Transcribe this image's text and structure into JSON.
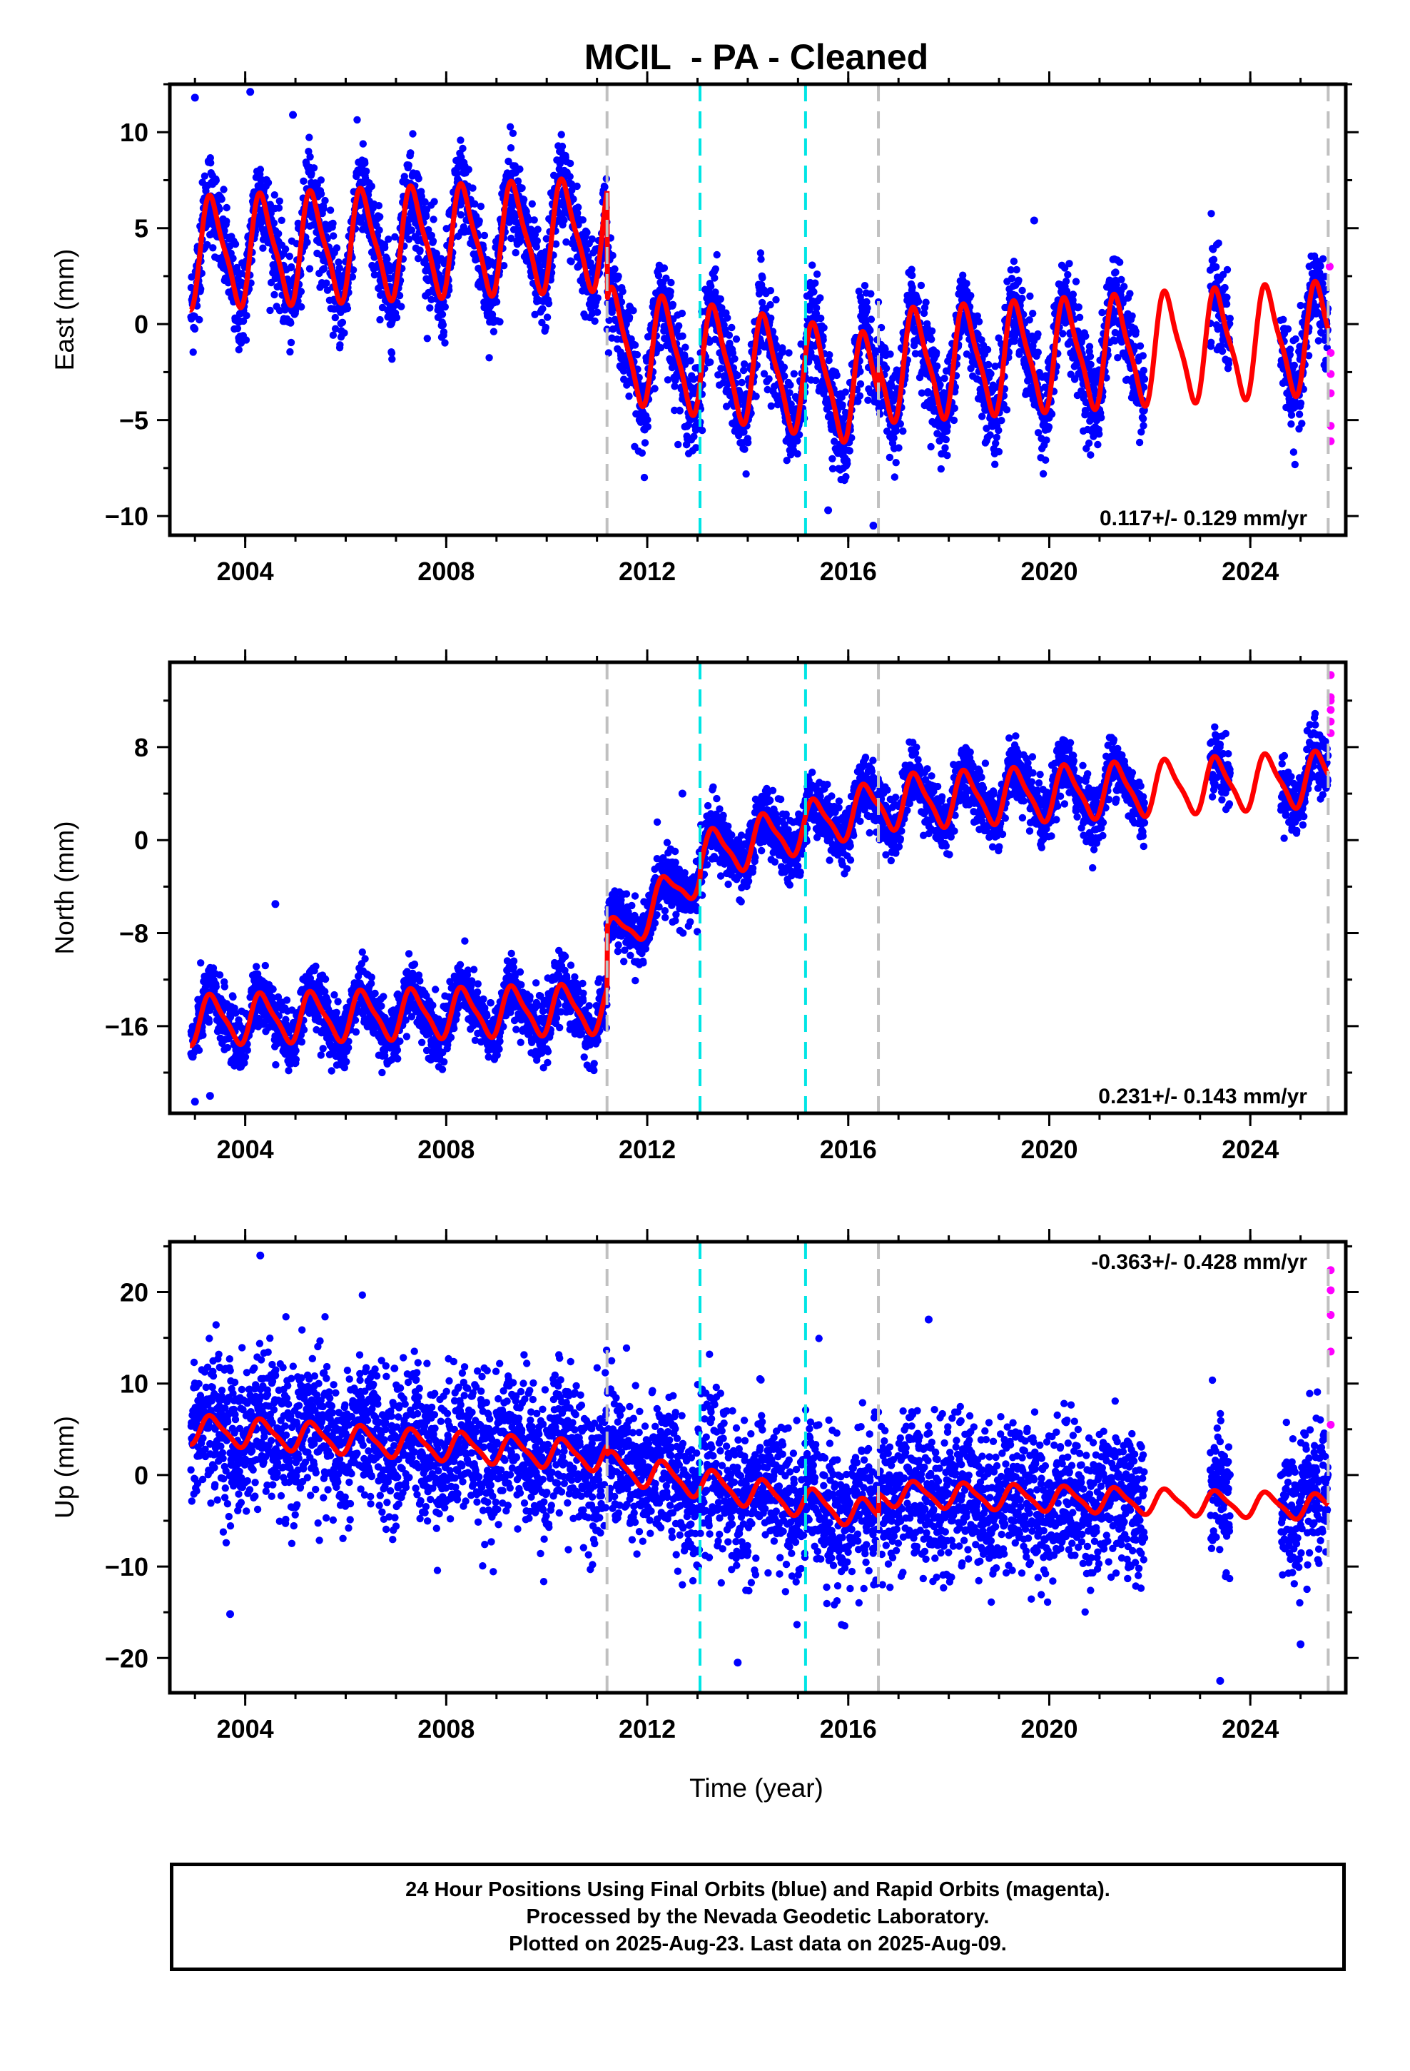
{
  "title": "MCIL  - PA - Cleaned",
  "xlabel": "Time (year)",
  "footer": {
    "line1": "24 Hour Positions Using Final Orbits (blue) and Rapid Orbits (magenta).",
    "line2": "Processed by the Nevada Geodetic Laboratory.",
    "line3": "Plotted on 2025-Aug-23. Last data on 2025-Aug-09."
  },
  "colors": {
    "final_orbits": "#0000ff",
    "rapid_orbits": "#ff00ff",
    "model_fit": "#ff0000",
    "equipment_change_line": "#c0c0c0",
    "earthquake_line": "#00e5e5"
  },
  "chart_data": [
    {
      "type": "scatter",
      "ylabel": "East (mm)",
      "xlim": [
        2002.5,
        2025.9
      ],
      "ylim": [
        -11,
        12.5
      ],
      "xticks": [
        2004,
        2008,
        2012,
        2016,
        2020,
        2024
      ],
      "yticks": [
        -10,
        -5,
        0,
        5,
        10
      ],
      "rate_label": "0.117+/- 0.129 mm/yr",
      "rate_position": "bottom-right",
      "grey_dashed_lines": [
        2011.2,
        2016.6,
        2025.55
      ],
      "cyan_dashed_lines": [
        2013.05,
        2015.15
      ],
      "model_segments": [
        {
          "start": 2002.9,
          "end": 2011.2,
          "mean_start": 3.7,
          "mean_end": 4.7,
          "amplitude": 2.7
        },
        {
          "start": 2011.2,
          "end": 2016.6,
          "mean_start": -1.0,
          "mean_end": -3.5,
          "amplitude": 2.7
        },
        {
          "start": 2016.6,
          "end": 2025.55,
          "mean_start": -2.2,
          "mean_end": -0.7,
          "amplitude": 2.7
        }
      ],
      "scatter_spread": 1.2,
      "rapid_points": [
        {
          "x": 2025.58,
          "y": 3.0
        },
        {
          "x": 2025.6,
          "y": -1.5
        },
        {
          "x": 2025.6,
          "y": -2.6
        },
        {
          "x": 2025.6,
          "y": -3.6
        },
        {
          "x": 2025.6,
          "y": -5.3
        },
        {
          "x": 2025.6,
          "y": -6.1
        }
      ],
      "outliers": [
        {
          "x": 2003.0,
          "y": 11.8
        },
        {
          "x": 2004.1,
          "y": 12.1
        },
        {
          "x": 2004.95,
          "y": 10.9
        },
        {
          "x": 2015.6,
          "y": -9.7
        },
        {
          "x": 2016.5,
          "y": -10.5
        },
        {
          "x": 2019.7,
          "y": 5.4
        }
      ]
    },
    {
      "type": "scatter",
      "ylabel": "North (mm)",
      "xlim": [
        2002.5,
        2025.9
      ],
      "ylim": [
        -23.5,
        15.3
      ],
      "xticks": [
        2004,
        2008,
        2012,
        2016,
        2020,
        2024
      ],
      "yticks": [
        -16,
        -8,
        0,
        8
      ],
      "rate_label": "0.231+/- 0.143 mm/yr",
      "rate_position": "bottom-right",
      "grey_dashed_lines": [
        2011.2,
        2016.6,
        2025.55
      ],
      "cyan_dashed_lines": [
        2013.05,
        2015.15
      ],
      "model_segments": [
        {
          "start": 2002.9,
          "end": 2011.2,
          "mean_start": -15.5,
          "mean_end": -14.5,
          "amplitude": 2.0
        },
        {
          "start": 2011.2,
          "end": 2013.05,
          "mean_start": -9.0,
          "mean_end": -2.5,
          "amplitude": 1.8
        },
        {
          "start": 2013.05,
          "end": 2016.6,
          "mean_start": -1.5,
          "mean_end": 3.0,
          "amplitude": 2.0
        },
        {
          "start": 2016.6,
          "end": 2025.55,
          "mean_start": 3.2,
          "mean_end": 5.3,
          "amplitude": 2.2
        }
      ],
      "scatter_spread": 1.3,
      "rapid_points": [
        {
          "x": 2025.6,
          "y": 14.2
        },
        {
          "x": 2025.6,
          "y": 12.3
        },
        {
          "x": 2025.6,
          "y": 12.0
        },
        {
          "x": 2025.6,
          "y": 11.2
        },
        {
          "x": 2025.6,
          "y": 10.2
        },
        {
          "x": 2025.6,
          "y": 9.2
        }
      ],
      "outliers": [
        {
          "x": 2003.0,
          "y": -22.5
        },
        {
          "x": 2003.3,
          "y": -22.0
        },
        {
          "x": 2004.6,
          "y": -5.5
        },
        {
          "x": 2012.7,
          "y": 4.0
        }
      ]
    },
    {
      "type": "scatter",
      "ylabel": "Up (mm)",
      "xlim": [
        2002.5,
        2025.9
      ],
      "ylim": [
        -23.8,
        25.5
      ],
      "xticks": [
        2004,
        2008,
        2012,
        2016,
        2020,
        2024
      ],
      "yticks": [
        -20,
        -10,
        0,
        10,
        20
      ],
      "rate_label": "-0.363+/- 0.428 mm/yr",
      "rate_position": "top-right",
      "grey_dashed_lines": [
        2011.2,
        2016.6,
        2025.55
      ],
      "cyan_dashed_lines": [
        2013.05,
        2015.15
      ],
      "model_segments": [
        {
          "start": 2002.9,
          "end": 2011.2,
          "mean_start": 5.0,
          "mean_end": 2.0,
          "amplitude": 1.5
        },
        {
          "start": 2011.2,
          "end": 2016.6,
          "mean_start": 1.0,
          "mean_end": -4.5,
          "amplitude": 1.5
        },
        {
          "start": 2016.6,
          "end": 2025.55,
          "mean_start": -2.0,
          "mean_end": -3.5,
          "amplitude": 1.3
        }
      ],
      "scatter_spread": 4.0,
      "rapid_points": [
        {
          "x": 2025.6,
          "y": 22.4
        },
        {
          "x": 2025.6,
          "y": 20.2
        },
        {
          "x": 2025.6,
          "y": 17.5
        },
        {
          "x": 2025.6,
          "y": 13.5
        },
        {
          "x": 2025.6,
          "y": 5.5
        }
      ],
      "outliers": [
        {
          "x": 2003.7,
          "y": -15.2
        },
        {
          "x": 2004.3,
          "y": 24.0
        },
        {
          "x": 2013.8,
          "y": -20.5
        },
        {
          "x": 2023.4,
          "y": -22.5
        },
        {
          "x": 2025.0,
          "y": -18.5
        },
        {
          "x": 2017.6,
          "y": 17.0
        }
      ]
    }
  ]
}
